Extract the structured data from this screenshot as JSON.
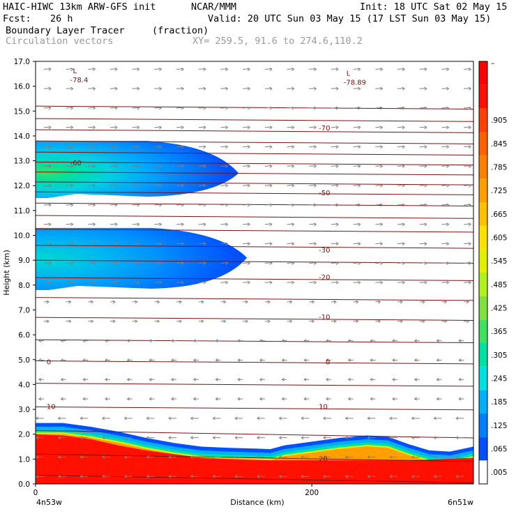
{
  "header": {
    "model": "HAIC-HIWC 13km ARW-GFS init",
    "agency": "NCAR/MMM",
    "init": "Init: 18 UTC Sat 02 May 15",
    "fcst_label": "Fcst:",
    "fcst_value": "26 h",
    "valid": "Valid: 20 UTC Sun 03 May 15 (17 LST Sun 03 May 15)",
    "field": "Boundary Layer Tracer",
    "field_units": "(fraction)",
    "vectors": "Circulation vectors",
    "xy": "XY= 259.5, 91.6 to 274.6,110.2"
  },
  "colors": {
    "isotherm": "#7a1010",
    "vector": "#808080",
    "colorbar": [
      "#ffffff",
      "#0050ff",
      "#0080ff",
      "#00b0ff",
      "#00e0e0",
      "#00e0a0",
      "#40e060",
      "#80e040",
      "#b0f020",
      "#e0f000",
      "#ffe000",
      "#ffc000",
      "#ffa000",
      "#ff8000",
      "#ff6000",
      "#ff4000",
      "#ff1000",
      "#ff0000"
    ]
  },
  "chart_data": {
    "type": "heatmap",
    "title": "Boundary Layer Tracer",
    "xlabel": "Distance (km)",
    "ylabel": "Height (km)",
    "xlim": [
      0,
      317
    ],
    "ylim": [
      0,
      17
    ],
    "x_ticks": [
      0,
      200
    ],
    "x_start_label": "4n53w",
    "x_end_label": "6n51w",
    "y_ticks": [
      0.0,
      1.0,
      2.0,
      3.0,
      4.0,
      5.0,
      6.0,
      7.0,
      8.0,
      9.0,
      10.0,
      11.0,
      12.0,
      13.0,
      14.0,
      15.0,
      16.0,
      17.0
    ],
    "y_tick_labels": [
      "0.0",
      "1.0",
      "2.0",
      "3.0",
      "4.0",
      "5.0",
      "6.0",
      "7.0",
      "8.0",
      "9.0",
      "10.0",
      "11.0",
      "12.0",
      "13.0",
      "14.0",
      "15.0",
      "16.0",
      "17.0"
    ],
    "colorbar_labels": [
      ".005",
      ".065",
      ".125",
      ".185",
      ".245",
      ".305",
      ".365",
      ".425",
      ".485",
      ".545",
      ".605",
      ".665",
      ".725",
      ".785",
      ".845",
      ".905"
    ],
    "isotherm_labels": [
      {
        "text": "-70",
        "x": 205,
        "y": 14.3
      },
      {
        "text": "-60",
        "x": 25,
        "y": 12.9
      },
      {
        "text": "-50",
        "x": 205,
        "y": 11.7
      },
      {
        "text": "-30",
        "x": 205,
        "y": 9.4
      },
      {
        "text": "-20",
        "x": 205,
        "y": 8.3
      },
      {
        "text": "-10",
        "x": 205,
        "y": 6.7
      },
      {
        "text": "0",
        "x": 8,
        "y": 4.9
      },
      {
        "text": "0",
        "x": 210,
        "y": 4.9
      },
      {
        "text": "10",
        "x": 8,
        "y": 3.1
      },
      {
        "text": "10",
        "x": 205,
        "y": 3.1
      },
      {
        "text": "20",
        "x": 205,
        "y": 1.0
      }
    ],
    "lows": [
      {
        "text": "L",
        "value": "-78.4",
        "x": 28,
        "y": 16.3
      },
      {
        "text": "L",
        "value": "-78.89",
        "x": 226,
        "y": 16.2
      }
    ],
    "boundary_layer": {
      "top_km": [
        [
          0,
          2.45
        ],
        [
          20,
          2.45
        ],
        [
          40,
          2.3
        ],
        [
          60,
          2.1
        ],
        [
          80,
          1.85
        ],
        [
          100,
          1.65
        ],
        [
          120,
          1.5
        ],
        [
          140,
          1.45
        ],
        [
          160,
          1.42
        ],
        [
          170,
          1.4
        ],
        [
          180,
          1.55
        ],
        [
          200,
          1.7
        ],
        [
          220,
          1.85
        ],
        [
          240,
          1.95
        ],
        [
          255,
          1.9
        ],
        [
          270,
          1.6
        ],
        [
          285,
          1.35
        ],
        [
          300,
          1.3
        ],
        [
          317,
          1.5
        ]
      ],
      "red_top_km": [
        [
          0,
          2.0
        ],
        [
          20,
          1.95
        ],
        [
          40,
          1.8
        ],
        [
          60,
          1.55
        ],
        [
          80,
          1.35
        ],
        [
          100,
          1.2
        ],
        [
          120,
          1.05
        ],
        [
          140,
          1.0
        ],
        [
          170,
          0.95
        ],
        [
          200,
          0.95
        ],
        [
          240,
          0.95
        ],
        [
          270,
          0.95
        ],
        [
          317,
          1.05
        ]
      ]
    },
    "plumes": [
      {
        "name": "upper",
        "y_bottom": 11.5,
        "y_top": 13.8,
        "x_end": 147,
        "core_y": 12.5
      },
      {
        "name": "middle",
        "y_bottom": 7.8,
        "y_top": 10.3,
        "x_end": 153,
        "core_y": 9.1
      }
    ]
  }
}
